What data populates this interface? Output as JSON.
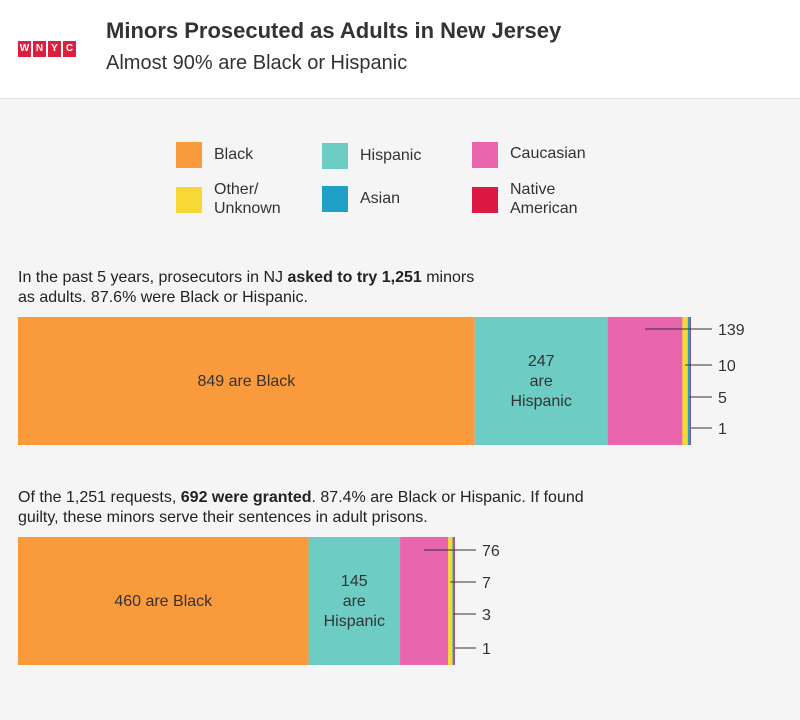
{
  "header": {
    "logo_letters": [
      "W",
      "N",
      "Y",
      "C"
    ],
    "title": "Minors Prosecuted as Adults in New Jersey",
    "subtitle": "Almost 90% are Black or Hispanic"
  },
  "colors": {
    "Black": "#f99a3c",
    "Hispanic": "#6dcdc5",
    "Caucasian": "#e965ad",
    "Other/Unknown": "#f8d834",
    "Asian": "#1fa0c7",
    "Native American": "#dc1942",
    "logo": "#de1e3c"
  },
  "legend": [
    {
      "key": "Black",
      "label": "Black"
    },
    {
      "key": "Hispanic",
      "label": "Hispanic"
    },
    {
      "key": "Caucasian",
      "label": "Caucasian"
    },
    {
      "key": "Other/Unknown",
      "label": "Other/\nUnknown"
    },
    {
      "key": "Asian",
      "label": "Asian"
    },
    {
      "key": "Native American",
      "label": "Native\nAmerican"
    }
  ],
  "intro1": {
    "pre": "In the past 5 years, prosecutors in NJ ",
    "bold": "asked to try 1,251",
    "post": " minors as adults. 87.6% were Black or Hispanic."
  },
  "intro2": {
    "pre": "Of the 1,251 requests, ",
    "bold": "692 were granted",
    "post": ". 87.4% are Black or Hispanic. If found guilty, these minors serve their sentences in adult prisons."
  },
  "chart_data": [
    {
      "type": "bar",
      "orientation": "horizontal-stacked",
      "categories": [
        "Black",
        "Hispanic",
        "Caucasian",
        "Other/Unknown",
        "Asian",
        "Native American"
      ],
      "values": [
        849,
        247,
        139,
        10,
        5,
        1
      ],
      "total": 1251,
      "segment_labels": [
        [
          "849 are Black"
        ],
        [
          "247",
          "are",
          "Hispanic"
        ],
        [],
        [],
        [],
        []
      ],
      "annotations": [
        "139",
        "10",
        "5",
        "1"
      ]
    },
    {
      "type": "bar",
      "orientation": "horizontal-stacked",
      "categories": [
        "Black",
        "Hispanic",
        "Caucasian",
        "Other/Unknown",
        "Asian",
        "Native American"
      ],
      "values": [
        460,
        145,
        76,
        7,
        3,
        1
      ],
      "total": 692,
      "segment_labels": [
        [
          "460 are Black"
        ],
        [
          "145",
          "are",
          "Hispanic"
        ],
        [],
        [],
        [],
        []
      ],
      "annotations": [
        "76",
        "7",
        "3",
        "1"
      ]
    }
  ]
}
